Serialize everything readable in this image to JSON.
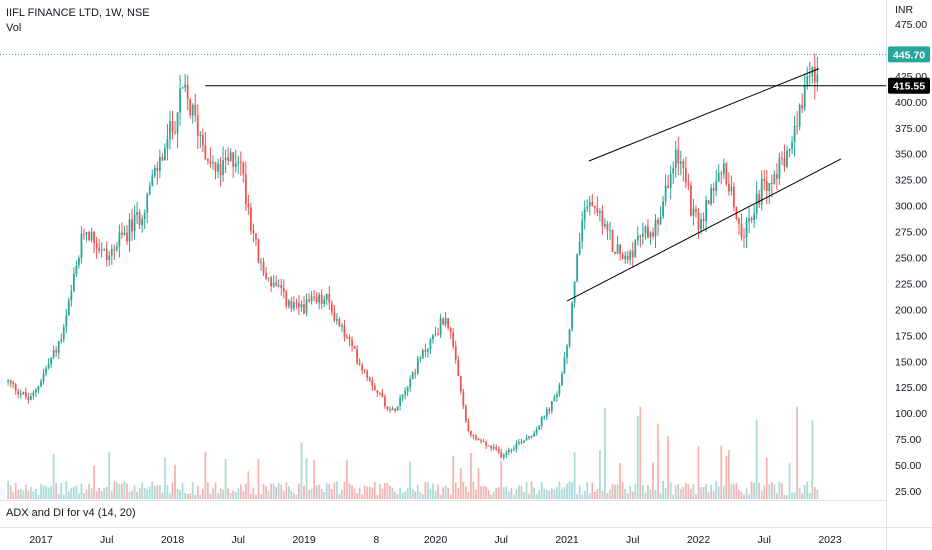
{
  "header": {
    "symbol": "IIFL FINANCE LTD, 1W, NSE",
    "volume_label": "Vol"
  },
  "currency": "INR",
  "indicator": {
    "label": "ADX and DI for v4 (14, 20)"
  },
  "colors": {
    "up": "#26a69a",
    "down": "#ef5350",
    "up_volume": "#a9dcd6",
    "down_volume": "#f4b4b2",
    "current_price_bg": "#26a69a",
    "line_level_bg": "#000000",
    "trendline": "#000000"
  },
  "chart_data": {
    "type": "candlestick",
    "title": "IIFL FINANCE LTD, 1W, NSE",
    "y_axis": {
      "unit": "INR",
      "range": [
        15,
        478
      ],
      "ticks": [
        "475.00",
        "450.00",
        "425.00",
        "400.00",
        "375.00",
        "350.00",
        "325.00",
        "300.00",
        "275.00",
        "250.00",
        "225.00",
        "200.00",
        "175.00",
        "150.00",
        "125.00",
        "100.00",
        "75.00",
        "50.00",
        "25.00"
      ]
    },
    "x_axis": {
      "labels": [
        "2017",
        "Jul",
        "2018",
        "Jul",
        "2019",
        "8",
        "2020",
        "Jul",
        "2021",
        "Jul",
        "2022",
        "Jul",
        "2023"
      ]
    },
    "current_price": "445.70",
    "marked_level": "415.55",
    "price_series_keypoints": [
      {
        "date": "2016-10",
        "price": 130
      },
      {
        "date": "2016-12",
        "price": 112
      },
      {
        "date": "2017-03",
        "price": 175
      },
      {
        "date": "2017-05",
        "price": 280
      },
      {
        "date": "2017-07",
        "price": 250
      },
      {
        "date": "2017-10",
        "price": 290
      },
      {
        "date": "2018-01",
        "price": 375
      },
      {
        "date": "2018-02",
        "price": 410
      },
      {
        "date": "2018-05",
        "price": 330
      },
      {
        "date": "2018-07",
        "price": 350
      },
      {
        "date": "2018-09",
        "price": 240
      },
      {
        "date": "2018-12",
        "price": 200
      },
      {
        "date": "2019-03",
        "price": 210
      },
      {
        "date": "2019-06",
        "price": 150
      },
      {
        "date": "2019-09",
        "price": 100
      },
      {
        "date": "2019-12",
        "price": 160
      },
      {
        "date": "2020-02",
        "price": 195
      },
      {
        "date": "2020-04",
        "price": 80
      },
      {
        "date": "2020-07",
        "price": 60
      },
      {
        "date": "2020-10",
        "price": 82
      },
      {
        "date": "2020-12",
        "price": 115
      },
      {
        "date": "2021-01",
        "price": 160
      },
      {
        "date": "2021-02",
        "price": 260
      },
      {
        "date": "2021-03",
        "price": 305
      },
      {
        "date": "2021-06",
        "price": 248
      },
      {
        "date": "2021-09",
        "price": 280
      },
      {
        "date": "2021-11",
        "price": 350
      },
      {
        "date": "2022-01",
        "price": 275
      },
      {
        "date": "2022-03",
        "price": 340
      },
      {
        "date": "2022-05",
        "price": 275
      },
      {
        "date": "2022-07",
        "price": 320
      },
      {
        "date": "2022-09",
        "price": 345
      },
      {
        "date": "2022-10",
        "price": 375
      },
      {
        "date": "2022-11",
        "price": 415
      },
      {
        "date": "2022-12",
        "price": 445.7
      }
    ],
    "volume": {
      "label": "Vol"
    },
    "drawings": [
      {
        "type": "horizontal_line",
        "value": 415.55
      },
      {
        "type": "trendline",
        "from": {
          "date": "2021-03",
          "price": 343
        },
        "to": {
          "date": "2022-12",
          "price": 432
        }
      },
      {
        "type": "trendline",
        "from": {
          "date": "2021-01",
          "price": 208
        },
        "to": {
          "date": "2023-02",
          "price": 345
        }
      }
    ],
    "grid": false,
    "legend": "top-left"
  }
}
